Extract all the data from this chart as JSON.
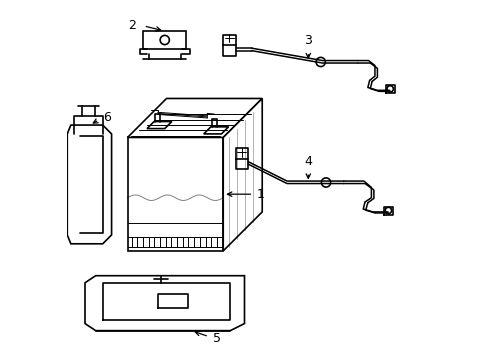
{
  "bg_color": "#ffffff",
  "line_color": "#000000",
  "default_lw": 1.2,
  "thin_lw": 0.7,
  "cable_lw": 1.1,
  "font_size": 9
}
